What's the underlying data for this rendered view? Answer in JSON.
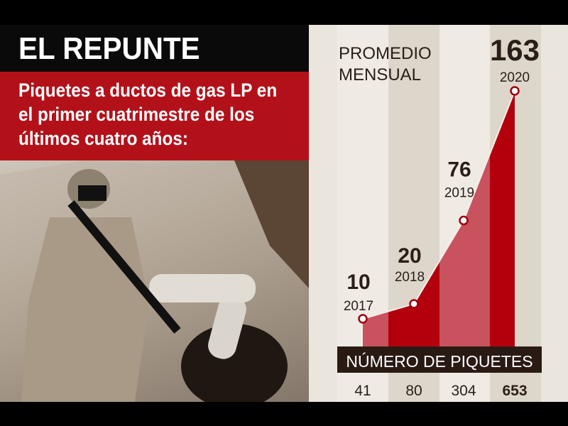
{
  "header": {
    "title": "EL REPUNTE",
    "subtitle": "Piquetes a ductos de gas LP en el primer cuatrimestre de los últimos cuatro años:"
  },
  "chart_data": {
    "type": "area",
    "title": "PROMEDIO MENSUAL",
    "categories": [
      "2017",
      "2018",
      "2019",
      "2020"
    ],
    "values": [
      10,
      20,
      76,
      163
    ],
    "table_label": "NÚMERO DE PIQUETES",
    "table_values": [
      "41",
      "80",
      "304",
      "653"
    ],
    "colors": {
      "dark_red": "#b3000c",
      "light_red": "#c8525d",
      "bar": "#2a1a14",
      "text": "#2a1e18"
    }
  }
}
